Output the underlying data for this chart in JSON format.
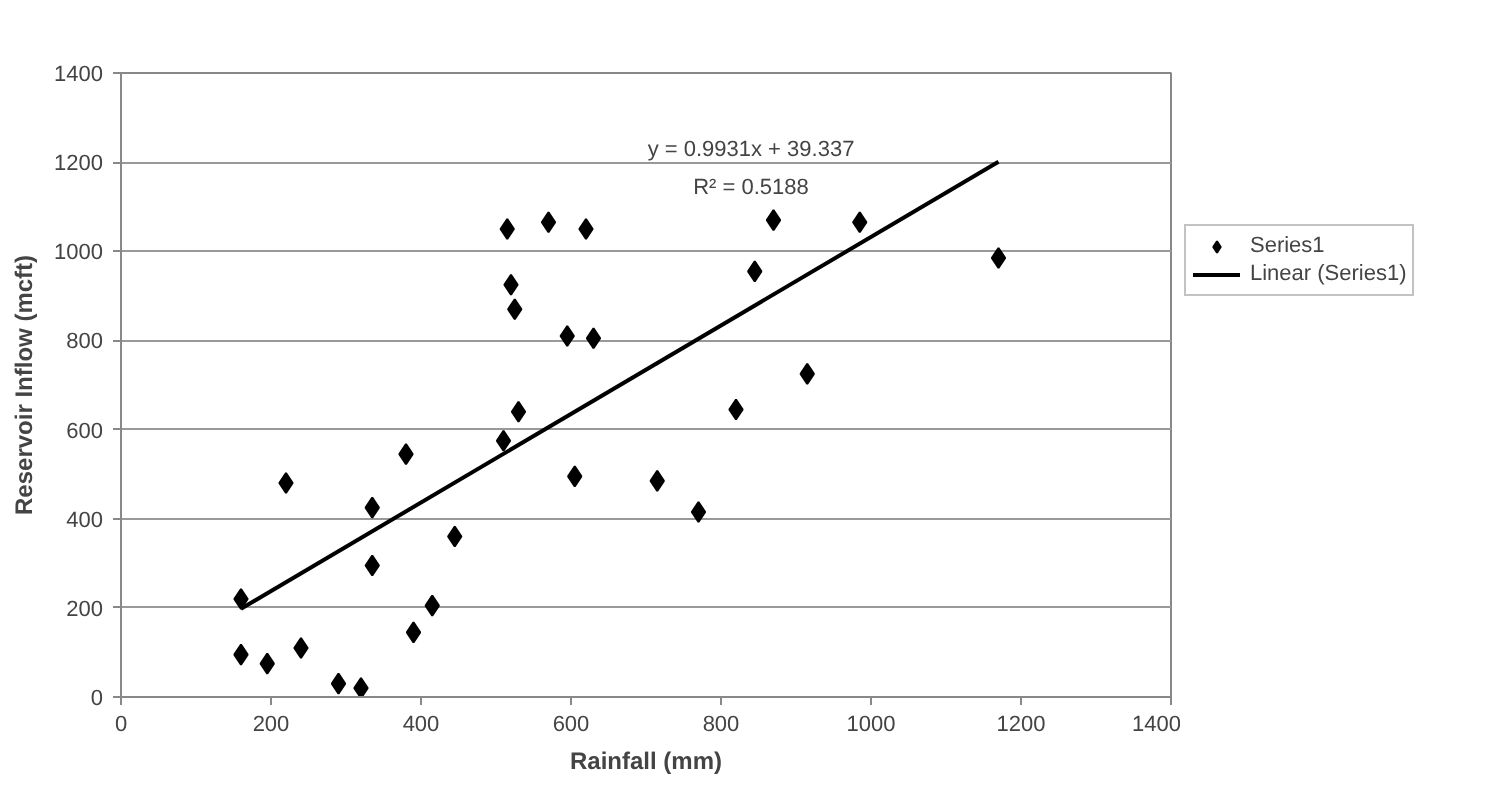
{
  "chart_data": {
    "type": "scatter",
    "xlabel": "Rainfall (mm)",
    "ylabel": "Reservoir Inflow (mcft)",
    "xlim": [
      0,
      1400
    ],
    "xticks": [
      0,
      200,
      400,
      600,
      800,
      1000,
      1200,
      1400
    ],
    "ylim": [
      0,
      1400
    ],
    "yticks": [
      0,
      200,
      400,
      600,
      800,
      1000,
      1200,
      1400
    ],
    "grid": "y",
    "legend": "right",
    "series": [
      {
        "name": "Series1",
        "color": "#000000",
        "marker": "diamond",
        "x": [
          160,
          160,
          195,
          220,
          240,
          290,
          320,
          335,
          335,
          380,
          390,
          415,
          445,
          510,
          515,
          520,
          525,
          530,
          570,
          595,
          605,
          620,
          630,
          715,
          770,
          820,
          845,
          870,
          915,
          985,
          1170
        ],
        "values": [
          220,
          95,
          75,
          480,
          110,
          30,
          20,
          295,
          425,
          545,
          145,
          205,
          360,
          575,
          1050,
          925,
          870,
          640,
          1065,
          810,
          495,
          1050,
          805,
          485,
          415,
          645,
          955,
          1070,
          725,
          1065,
          985
        ]
      },
      {
        "name": "Linear (Series1)",
        "type": "line",
        "color": "#000000",
        "line_style": "solid",
        "x": [
          160,
          1170
        ],
        "values": [
          198,
          1201
        ]
      }
    ],
    "annotations": [
      "y = 0.9931x + 39.337",
      "R² = 0.5188"
    ]
  }
}
